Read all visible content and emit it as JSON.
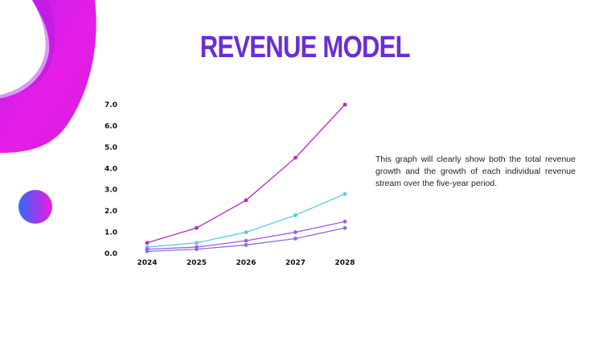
{
  "slide": {
    "title": "REVENUE MODEL",
    "description": "This graph will clearly show both the total revenue growth and the growth of each individual revenue stream over the five-year period."
  },
  "colors": {
    "title": "#6a2ed8",
    "accent_magenta": "#e71ee5",
    "accent_purple": "#9a1ef0",
    "accent_blue": "#2f6bf5"
  },
  "chart_data": {
    "type": "line",
    "categories": [
      "2024",
      "2025",
      "2026",
      "2027",
      "2028"
    ],
    "ylim": [
      0,
      7
    ],
    "yticks": [
      "0.0",
      "1.0",
      "2.0",
      "3.0",
      "4.0",
      "5.0",
      "6.0",
      "7.0"
    ],
    "grid": false,
    "legend": "none",
    "series": [
      {
        "color": "#c026b8",
        "values": [
          0.5,
          1.2,
          2.5,
          4.5,
          7.0
        ]
      },
      {
        "color": "#5bc8ec",
        "values": [
          0.3,
          0.5,
          1.0,
          1.8,
          2.8
        ]
      },
      {
        "color": "#a25ae6",
        "values": [
          0.2,
          0.3,
          0.6,
          1.0,
          1.5
        ]
      },
      {
        "color": "#8a6fdc",
        "values": [
          0.1,
          0.2,
          0.4,
          0.7,
          1.2
        ]
      }
    ]
  }
}
